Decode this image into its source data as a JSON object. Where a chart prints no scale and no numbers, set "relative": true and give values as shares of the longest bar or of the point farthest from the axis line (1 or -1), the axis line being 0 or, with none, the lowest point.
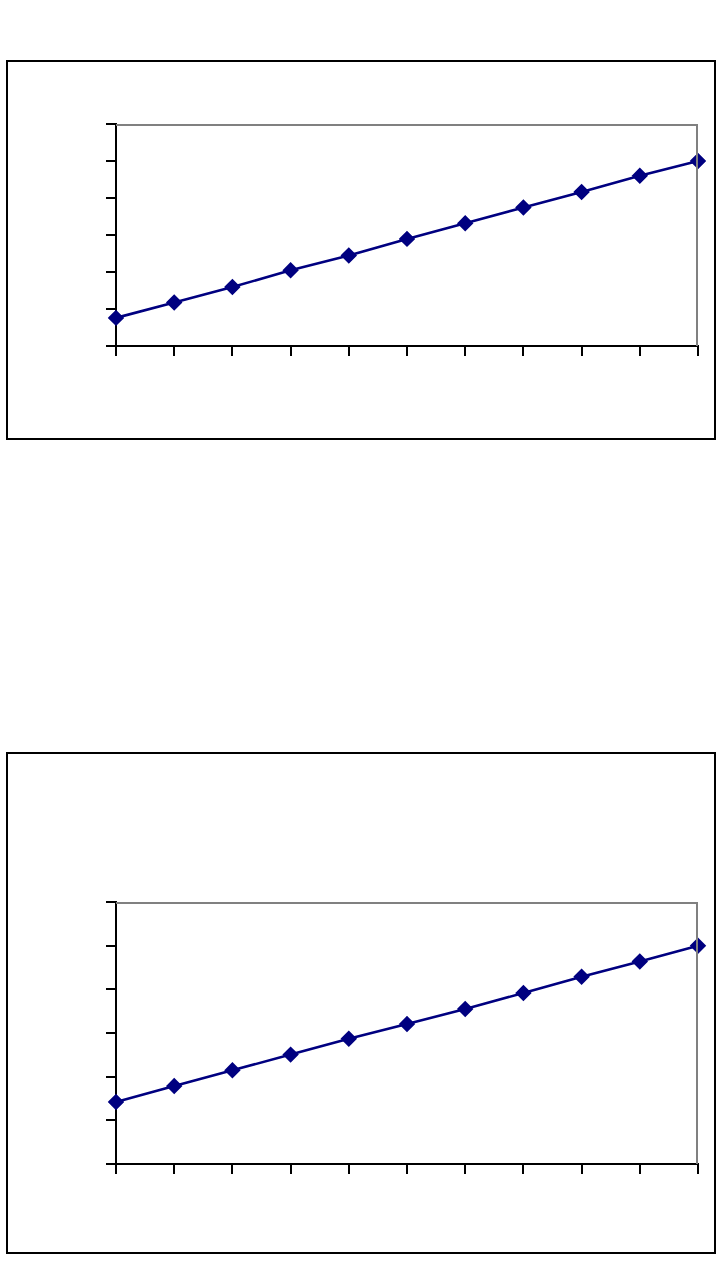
{
  "chart_data": [
    {
      "type": "line",
      "relative": true,
      "marker": "diamond",
      "line_style": "solid",
      "grid": false,
      "legend": false,
      "categories": [
        null,
        null,
        null,
        null,
        null,
        null,
        null,
        null,
        null,
        null,
        null
      ],
      "series": [
        {
          "color": "#000080",
          "values": [
            0.152,
            0.235,
            0.319,
            0.409,
            0.489,
            0.579,
            0.663,
            0.749,
            0.833,
            0.92,
            1
          ]
        }
      ]
    },
    {
      "type": "line",
      "relative": true,
      "marker": "diamond",
      "line_style": "solid",
      "grid": false,
      "legend": false,
      "categories": [
        null,
        null,
        null,
        null,
        null,
        null,
        null,
        null,
        null,
        null,
        null
      ],
      "series": [
        {
          "color": "#000080",
          "values": [
            0.284,
            0.357,
            0.429,
            0.501,
            0.574,
            0.641,
            0.71,
            0.783,
            0.858,
            0.928,
            1
          ]
        }
      ]
    }
  ]
}
